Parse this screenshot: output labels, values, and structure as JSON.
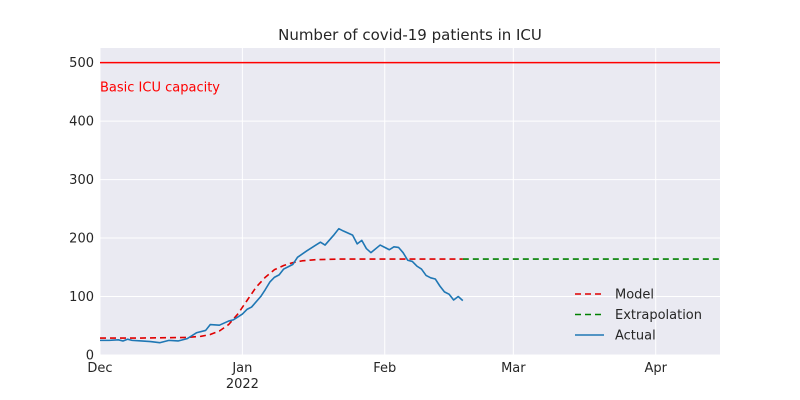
{
  "chart_data": {
    "type": "line",
    "title": "Number of covid-19 patients in ICU",
    "xlabel": "",
    "ylabel": "",
    "xlim": [
      "2021-12-01",
      "2022-04-15"
    ],
    "ylim": [
      0,
      525
    ],
    "grid": true,
    "legend_position": "lower-right",
    "x_ticks": [
      {
        "date": "2021-12-01",
        "label": "Dec",
        "sublabel": ""
      },
      {
        "date": "2022-01-01",
        "label": "Jan",
        "sublabel": "2022"
      },
      {
        "date": "2022-02-01",
        "label": "Feb",
        "sublabel": ""
      },
      {
        "date": "2022-03-01",
        "label": "Mar",
        "sublabel": ""
      },
      {
        "date": "2022-04-01",
        "label": "Apr",
        "sublabel": ""
      }
    ],
    "y_ticks": [
      0,
      100,
      200,
      300,
      400,
      500
    ],
    "reference_line": {
      "y": 500,
      "label": "Basic ICU capacity",
      "color": "#ff0000"
    },
    "series": [
      {
        "name": "Model",
        "style": "dashed",
        "color": "#e00000",
        "points": [
          [
            "2021-12-01",
            29
          ],
          [
            "2021-12-10",
            29
          ],
          [
            "2021-12-20",
            30
          ],
          [
            "2021-12-23",
            32
          ],
          [
            "2021-12-25",
            35
          ],
          [
            "2021-12-27",
            41
          ],
          [
            "2021-12-29",
            52
          ],
          [
            "2021-12-31",
            70
          ],
          [
            "2022-01-02",
            93
          ],
          [
            "2022-01-04",
            116
          ],
          [
            "2022-01-06",
            133
          ],
          [
            "2022-01-08",
            146
          ],
          [
            "2022-01-10",
            153
          ],
          [
            "2022-01-12",
            158
          ],
          [
            "2022-01-14",
            161
          ],
          [
            "2022-01-17",
            163
          ],
          [
            "2022-01-22",
            164
          ],
          [
            "2022-02-18",
            164
          ]
        ]
      },
      {
        "name": "Extrapolation",
        "style": "dashed",
        "color": "#008000",
        "points": [
          [
            "2022-02-18",
            164
          ],
          [
            "2022-04-15",
            164
          ]
        ]
      },
      {
        "name": "Actual",
        "style": "solid",
        "color": "#1f77b4",
        "points": [
          [
            "2021-12-01",
            25
          ],
          [
            "2021-12-03",
            25
          ],
          [
            "2021-12-05",
            26
          ],
          [
            "2021-12-06",
            24
          ],
          [
            "2021-12-07",
            27
          ],
          [
            "2021-12-08",
            25
          ],
          [
            "2021-12-10",
            24
          ],
          [
            "2021-12-12",
            23
          ],
          [
            "2021-12-14",
            21
          ],
          [
            "2021-12-16",
            25
          ],
          [
            "2021-12-18",
            24
          ],
          [
            "2021-12-20",
            28
          ],
          [
            "2021-12-22",
            38
          ],
          [
            "2021-12-24",
            42
          ],
          [
            "2021-12-25",
            52
          ],
          [
            "2021-12-27",
            51
          ],
          [
            "2021-12-29",
            58
          ],
          [
            "2021-12-30",
            60
          ],
          [
            "2022-01-01",
            70
          ],
          [
            "2022-01-02",
            78
          ],
          [
            "2022-01-03",
            82
          ],
          [
            "2022-01-05",
            100
          ],
          [
            "2022-01-06",
            112
          ],
          [
            "2022-01-07",
            125
          ],
          [
            "2022-01-08",
            133
          ],
          [
            "2022-01-09",
            137
          ],
          [
            "2022-01-10",
            147
          ],
          [
            "2022-01-12",
            155
          ],
          [
            "2022-01-13",
            167
          ],
          [
            "2022-01-15",
            178
          ],
          [
            "2022-01-17",
            188
          ],
          [
            "2022-01-18",
            193
          ],
          [
            "2022-01-19",
            188
          ],
          [
            "2022-01-21",
            206
          ],
          [
            "2022-01-22",
            216
          ],
          [
            "2022-01-23",
            212
          ],
          [
            "2022-01-25",
            205
          ],
          [
            "2022-01-26",
            190
          ],
          [
            "2022-01-27",
            196
          ],
          [
            "2022-01-28",
            182
          ],
          [
            "2022-01-29",
            175
          ],
          [
            "2022-01-31",
            188
          ],
          [
            "2022-02-01",
            184
          ],
          [
            "2022-02-02",
            180
          ],
          [
            "2022-02-03",
            185
          ],
          [
            "2022-02-04",
            184
          ],
          [
            "2022-02-05",
            175
          ],
          [
            "2022-02-06",
            162
          ],
          [
            "2022-02-07",
            160
          ],
          [
            "2022-02-08",
            152
          ],
          [
            "2022-02-09",
            147
          ],
          [
            "2022-02-10",
            136
          ],
          [
            "2022-02-11",
            132
          ],
          [
            "2022-02-12",
            130
          ],
          [
            "2022-02-13",
            118
          ],
          [
            "2022-02-14",
            108
          ],
          [
            "2022-02-15",
            104
          ],
          [
            "2022-02-16",
            94
          ],
          [
            "2022-02-17",
            100
          ],
          [
            "2022-02-18",
            93
          ]
        ]
      }
    ]
  }
}
